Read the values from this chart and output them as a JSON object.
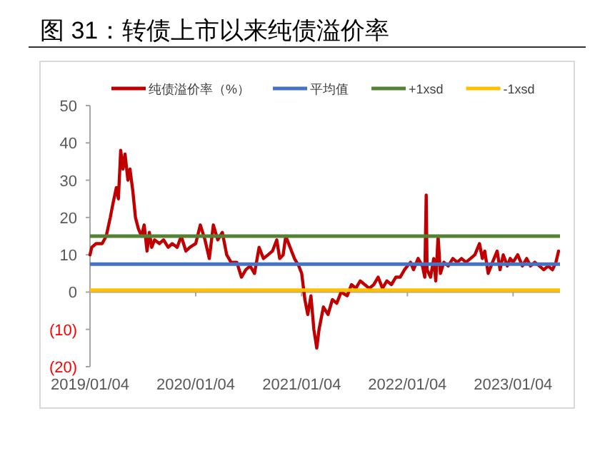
{
  "chart_data": {
    "type": "line",
    "title": "图 31：转债上市以来纯债溢价率",
    "x": [
      "2019-01-04",
      "2019-01-10",
      "2019-01-25",
      "2019-02-15",
      "2019-03-01",
      "2019-03-15",
      "2019-03-25",
      "2019-04-05",
      "2019-04-12",
      "2019-04-20",
      "2019-04-28",
      "2019-05-05",
      "2019-05-15",
      "2019-05-22",
      "2019-06-01",
      "2019-06-10",
      "2019-06-20",
      "2019-07-01",
      "2019-07-10",
      "2019-07-20",
      "2019-07-28",
      "2019-08-05",
      "2019-08-15",
      "2019-09-01",
      "2019-09-15",
      "2019-10-01",
      "2019-10-15",
      "2019-11-01",
      "2019-11-15",
      "2019-12-01",
      "2019-12-15",
      "2020-01-04",
      "2020-01-20",
      "2020-02-05",
      "2020-02-20",
      "2020-03-05",
      "2020-03-20",
      "2020-04-05",
      "2020-04-20",
      "2020-05-05",
      "2020-05-25",
      "2020-06-10",
      "2020-06-25",
      "2020-07-10",
      "2020-07-25",
      "2020-08-10",
      "2020-08-25",
      "2020-09-10",
      "2020-09-25",
      "2020-10-10",
      "2020-10-20",
      "2020-11-01",
      "2020-11-10",
      "2020-11-25",
      "2020-12-10",
      "2020-12-25",
      "2021-01-04",
      "2021-01-15",
      "2021-01-25",
      "2021-02-05",
      "2021-02-15",
      "2021-02-25",
      "2021-03-05",
      "2021-03-20",
      "2021-04-05",
      "2021-04-20",
      "2021-05-05",
      "2021-05-20",
      "2021-06-10",
      "2021-06-25",
      "2021-07-10",
      "2021-07-25",
      "2021-08-10",
      "2021-08-25",
      "2021-09-10",
      "2021-09-25",
      "2021-10-10",
      "2021-10-25",
      "2021-11-10",
      "2021-11-25",
      "2021-12-10",
      "2021-12-25",
      "2022-01-04",
      "2022-01-15",
      "2022-01-25",
      "2022-02-10",
      "2022-02-25",
      "2022-03-05",
      "2022-03-10",
      "2022-03-13",
      "2022-03-25",
      "2022-04-05",
      "2022-04-12",
      "2022-04-20",
      "2022-04-28",
      "2022-05-10",
      "2022-05-25",
      "2022-06-10",
      "2022-06-25",
      "2022-07-10",
      "2022-07-25",
      "2022-08-10",
      "2022-08-25",
      "2022-09-10",
      "2022-09-20",
      "2022-09-28",
      "2022-10-10",
      "2022-10-25",
      "2022-11-10",
      "2022-11-20",
      "2022-12-01",
      "2022-12-15",
      "2022-12-25",
      "2023-01-04",
      "2023-01-20",
      "2023-02-05",
      "2023-02-20",
      "2023-03-05",
      "2023-03-20",
      "2023-04-05",
      "2023-04-20",
      "2023-05-05",
      "2023-05-20",
      "2023-06-01",
      "2023-06-10"
    ],
    "series": [
      {
        "name": "纯债溢价率（%）",
        "color": "#c00000",
        "values": [
          10,
          12,
          13,
          13,
          15,
          20,
          24,
          28,
          25,
          38,
          33,
          37,
          30,
          33,
          27,
          20,
          17,
          15,
          18,
          11,
          16,
          12,
          14,
          13,
          14,
          12,
          13,
          12,
          15,
          11,
          12,
          13,
          18,
          14,
          9,
          18,
          14,
          16,
          10,
          8,
          8,
          4,
          6,
          7,
          5,
          12,
          9,
          10,
          11,
          14,
          9,
          10,
          15,
          12,
          9,
          7,
          5,
          -2,
          -6,
          -1,
          -10,
          -15,
          -10,
          -4,
          -6,
          -2,
          -3,
          0,
          -1,
          2,
          1,
          3,
          2,
          1,
          2,
          4,
          1,
          3,
          2,
          4,
          4,
          6,
          7,
          8,
          6,
          9,
          7,
          4,
          26,
          6,
          4,
          9,
          3,
          15,
          5,
          8,
          7,
          9,
          8,
          9,
          8,
          9,
          10,
          13,
          9,
          11,
          5,
          8,
          11,
          6,
          10,
          7,
          9,
          8,
          10,
          7,
          9,
          7,
          8,
          7,
          6,
          7,
          6,
          8,
          11
        ]
      }
    ],
    "ref_lines": [
      {
        "axis": "y",
        "value": 7.5,
        "label": "平均值",
        "color": "#4472c4"
      },
      {
        "axis": "y",
        "value": 15,
        "label": "+1xsd",
        "color": "#548235"
      },
      {
        "axis": "y",
        "value": 0.5,
        "label": "-1xsd",
        "color": "#ffc000"
      }
    ],
    "xlim": [
      "2019-01-04",
      "2023-06-15"
    ],
    "xticks": [
      {
        "value": "2019-01-04",
        "label": "2019/01/04"
      },
      {
        "value": "2020-01-04",
        "label": "2020/01/04"
      },
      {
        "value": "2021-01-04",
        "label": "2021/01/04"
      },
      {
        "value": "2022-01-04",
        "label": "2022/01/04"
      },
      {
        "value": "2023-01-04",
        "label": "2023/01/04"
      }
    ],
    "ylim": [
      -20,
      50
    ],
    "yticks": [
      {
        "value": -20,
        "label": "(20)"
      },
      {
        "value": -10,
        "label": "(10)"
      },
      0,
      10,
      20,
      30,
      40,
      50
    ],
    "legend": "top",
    "grid": false
  }
}
